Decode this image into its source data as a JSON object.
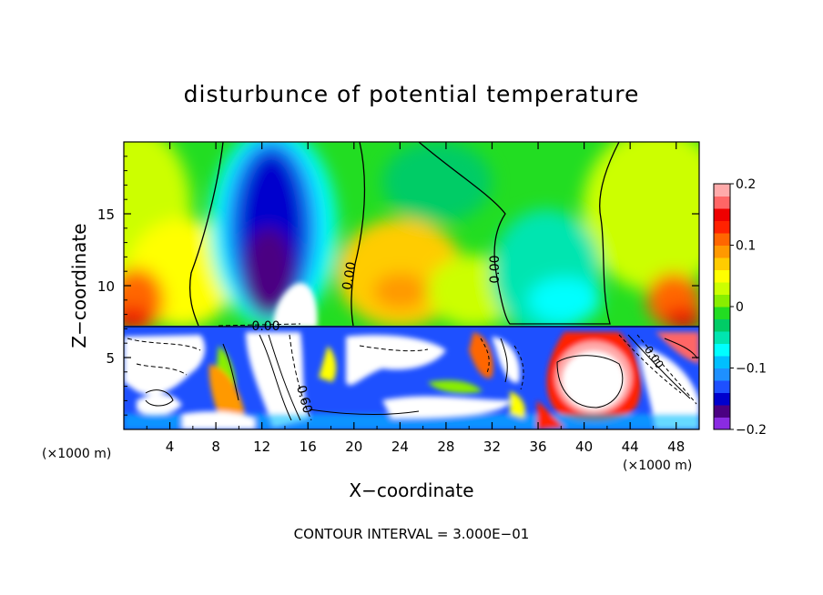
{
  "chart_data": {
    "type": "heatmap",
    "title": "disturbunce of potential temperature",
    "xlabel": "X−coordinate",
    "ylabel": "Z−coordinate",
    "x_unit": "(×1000 m)",
    "y_unit": "(×1000 m)",
    "xlim": [
      0,
      50
    ],
    "ylim": [
      0,
      20
    ],
    "x_ticks": [
      4,
      8,
      12,
      16,
      20,
      24,
      28,
      32,
      36,
      40,
      44,
      48
    ],
    "y_ticks": [
      5,
      10,
      15
    ],
    "colorbar": {
      "range": [
        -0.2,
        0.2
      ],
      "tick_values": [
        0.2,
        0.1,
        0,
        -0.1,
        -0.2
      ],
      "tick_labels": [
        "0.2",
        "0.1",
        "0",
        "−0.1",
        "−0.2"
      ],
      "colors": [
        "#8a2be2",
        "#4b0082",
        "#0000cd",
        "#1e50ff",
        "#1e90ff",
        "#00bfff",
        "#00ffff",
        "#00e5b0",
        "#00cc66",
        "#22dd22",
        "#88ee00",
        "#ccff00",
        "#ffff00",
        "#ffcc00",
        "#ff9900",
        "#ff6600",
        "#ff2200",
        "#ee0000",
        "#ff6666",
        "#ffaaaa"
      ]
    },
    "contour_labels": [
      "0.00",
      "0.00",
      "0.00",
      "0.60",
      "0.00"
    ],
    "footer": "CONTOUR INTERVAL = 3.000E−01",
    "grid": false,
    "legend": "colorbar-right"
  }
}
